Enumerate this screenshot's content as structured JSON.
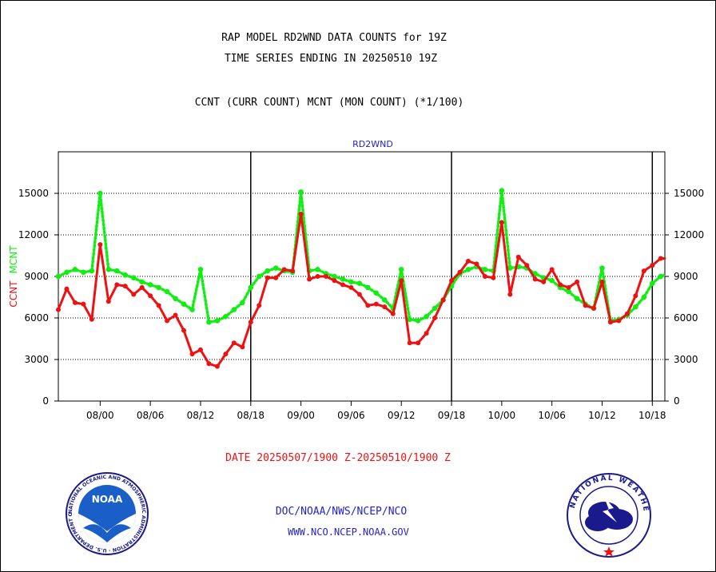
{
  "header": {
    "line1": "RAP MODEL RD2WND DATA COUNTS for 19Z",
    "line2": "TIME SERIES ENDING IN 20250510 19Z",
    "line3": "CCNT (CURR COUNT) MCNT (MON COUNT) (*1/100)"
  },
  "footer": {
    "date_range": "DATE 20250507/1900 Z-20250510/1900 Z",
    "org_path": "DOC/NOAA/NWS/NCEP/NCO",
    "website": "WWW.NCO.NCEP.NOAA.GOV"
  },
  "logos": {
    "noaa": "NOAA",
    "noaa_ring": "NATIONAL OCEANIC AND ATMOSPHERIC ADMINISTRATION · U.S. DEPARTMENT OF COMMERCE ·",
    "nws_ring": "NATIONAL WEATHER SERVICE"
  },
  "colors": {
    "ccnt": "#ee1111",
    "mcnt": "#11ee11",
    "date_text": "#ee1111",
    "footer_text": "#2222cc",
    "panel_title": "#2222cc"
  },
  "chart_data": {
    "type": "line",
    "title": "RD2WND",
    "ylabel_left": [
      "CCNT",
      "MCNT"
    ],
    "ylim": [
      0,
      18000
    ],
    "yticks": [
      0,
      3000,
      6000,
      9000,
      12000,
      15000
    ],
    "x_tick_labels": [
      "08/00",
      "08/06",
      "08/12",
      "08/18",
      "09/00",
      "09/06",
      "09/12",
      "09/18",
      "10/00",
      "10/06",
      "10/12",
      "10/18"
    ],
    "x_tick_hours": [
      5,
      11,
      17,
      23,
      29,
      35,
      41,
      47,
      53,
      59,
      65,
      71
    ],
    "xlim_hours": [
      0,
      72.5
    ],
    "day_boundaries_hours": [
      23,
      47,
      71
    ],
    "grid": "horizontal dotted",
    "series": [
      {
        "name": "CCNT",
        "x": [
          0,
          1,
          2,
          3,
          4,
          5,
          6,
          7,
          8,
          9,
          10,
          11,
          12,
          13,
          14,
          15,
          16,
          17,
          18,
          19,
          20,
          21,
          22,
          23,
          24,
          25,
          26,
          27,
          28,
          29,
          30,
          31,
          32,
          33,
          34,
          35,
          36,
          37,
          38,
          39,
          40,
          41,
          42,
          43,
          44,
          45,
          46,
          47,
          48,
          49,
          50,
          51,
          52,
          53,
          54,
          55,
          56,
          57,
          58,
          59,
          60,
          61,
          62,
          63,
          64,
          65,
          66,
          67,
          68,
          69,
          70,
          71,
          72,
          72.5
        ],
        "values": [
          6600,
          8100,
          7100,
          7000,
          5900,
          11300,
          7200,
          8400,
          8300,
          7700,
          8200,
          7600,
          6900,
          5800,
          6200,
          5100,
          3400,
          3700,
          2700,
          2500,
          3400,
          4200,
          3900,
          5700,
          6900,
          8900,
          8900,
          9500,
          9400,
          13500,
          8800,
          9000,
          9000,
          8700,
          8400,
          8200,
          7700,
          6900,
          7000,
          6800,
          6300,
          8700,
          4200,
          4200,
          4900,
          6000,
          7300,
          8700,
          9300,
          10100,
          9900,
          9000,
          8900,
          12900,
          7700,
          10400,
          9800,
          8800,
          8600,
          9500,
          8400,
          8200,
          8600,
          6900,
          6700,
          8600,
          5700,
          5800,
          6300,
          7600,
          9400,
          9800,
          10300,
          10300
        ]
      },
      {
        "name": "MCNT",
        "x": [
          0,
          1,
          2,
          3,
          4,
          5,
          6,
          7,
          8,
          9,
          10,
          11,
          12,
          13,
          14,
          15,
          16,
          17,
          18,
          19,
          20,
          21,
          22,
          23,
          24,
          25,
          26,
          27,
          28,
          29,
          30,
          31,
          32,
          33,
          34,
          35,
          36,
          37,
          38,
          39,
          40,
          41,
          42,
          43,
          44,
          45,
          46,
          47,
          48,
          49,
          50,
          51,
          52,
          53,
          54,
          55,
          56,
          57,
          58,
          59,
          60,
          61,
          62,
          63,
          64,
          65,
          66,
          67,
          68,
          69,
          70,
          71,
          72,
          72.5
        ],
        "values": [
          9000,
          9300,
          9500,
          9300,
          9400,
          15000,
          9500,
          9400,
          9100,
          8900,
          8600,
          8400,
          8200,
          7900,
          7400,
          7000,
          6600,
          9500,
          5700,
          5800,
          6100,
          6600,
          7100,
          8200,
          9000,
          9400,
          9600,
          9400,
          9300,
          15100,
          9400,
          9500,
          9200,
          9000,
          8800,
          8600,
          8500,
          8200,
          7800,
          7300,
          6700,
          9500,
          5900,
          5800,
          6100,
          6700,
          7300,
          8300,
          9200,
          9500,
          9700,
          9500,
          9400,
          15200,
          9600,
          9700,
          9600,
          9200,
          8900,
          8700,
          8200,
          7900,
          7400,
          7000,
          6700,
          9600,
          5800,
          5900,
          6200,
          6800,
          7500,
          8500,
          9000,
          9100
        ]
      }
    ]
  }
}
